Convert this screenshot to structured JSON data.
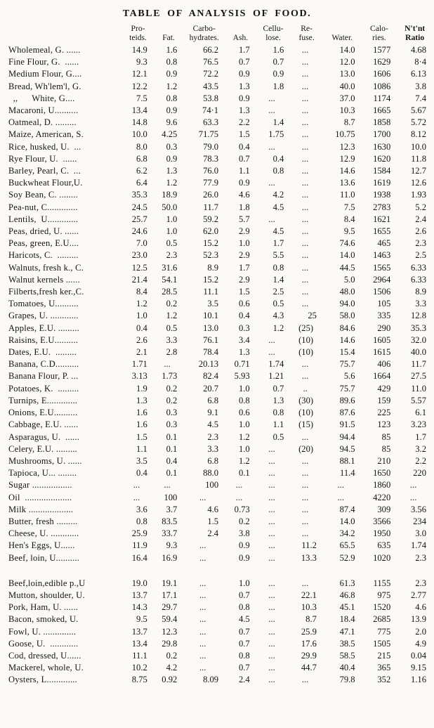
{
  "page": {
    "title": "TABLE OF ANALYSIS OF FOOD."
  },
  "table": {
    "headers": [
      {
        "l1": "Pro-",
        "l2": "teids."
      },
      {
        "l1": "",
        "l2": "Fat."
      },
      {
        "l1": "Carbo-",
        "l2": "hydrates."
      },
      {
        "l1": "",
        "l2": "Ash."
      },
      {
        "l1": "Cellu-",
        "l2": "lose."
      },
      {
        "l1": "Re-",
        "l2": "fuse."
      },
      {
        "l1": "",
        "l2": "Water."
      },
      {
        "l1": "Calo-",
        "l2": "ries."
      },
      {
        "l1": "N't'nt",
        "l2": "Ratio"
      }
    ],
    "rows_main": [
      {
        "name": "Wholemeal, G. ......",
        "v": [
          "14.9",
          "1.6",
          "66.2",
          "1.7",
          "1.6",
          "...",
          "14.0",
          "1577",
          "4.68"
        ]
      },
      {
        "name": "Fine Flour, G.  ......",
        "v": [
          "9.3",
          "0.8",
          "76.5",
          "0.7",
          "0.7",
          "...",
          "12.0",
          "1629",
          "8·4"
        ]
      },
      {
        "name": "Medium Flour, G....",
        "v": [
          "12.1",
          "0.9",
          "72.2",
          "0.9",
          "0.9",
          "...",
          "13.0",
          "1606",
          "6.13"
        ]
      },
      {
        "name": "Bread, Wh'lem'l, G.",
        "v": [
          "12.2",
          "1.2",
          "43.5",
          "1.3",
          "1.8",
          "...",
          "40.0",
          "1086",
          "3.8"
        ]
      },
      {
        "name": "  ,,      White, G....",
        "v": [
          "7.5",
          "0.8",
          "53.8",
          "0.9",
          "...",
          "...",
          "37.0",
          "1174",
          "7.4"
        ]
      },
      {
        "name": "Macaroni, U..........",
        "v": [
          "13.4",
          "0.9",
          "74·1",
          "1.3",
          "...",
          "...",
          "10.3",
          "1665",
          "5.67"
        ]
      },
      {
        "name": "Oatmeal, D. .........",
        "v": [
          "14.8",
          "9.6",
          "63.3",
          "2.2",
          "1.4",
          "...",
          "8.7",
          "1858",
          "5.72"
        ]
      },
      {
        "name": "Maize, American, S.",
        "v": [
          "10.0",
          "4.25",
          "71.75",
          "1.5",
          "1.75",
          "...",
          "10.75",
          "1700",
          "8.12"
        ]
      },
      {
        "name": "Rice, husked, U.  ...",
        "v": [
          "8.0",
          "0.3",
          "79.0",
          "0.4",
          "...",
          "...",
          "12.3",
          "1630",
          "10.0"
        ]
      },
      {
        "name": "Rye Flour, U.  ......",
        "v": [
          "6.8",
          "0.9",
          "78.3",
          "0.7",
          "0.4",
          "...",
          "12.9",
          "1620",
          "11.8"
        ]
      },
      {
        "name": "Barley, Pearl, C.  ...",
        "v": [
          "6.2",
          "1.3",
          "76.0",
          "1.1",
          "0.8",
          "...",
          "14.6",
          "1584",
          "12.7"
        ]
      },
      {
        "name": "Buckwheat Flour,U.",
        "v": [
          "6.4",
          "1.2",
          "77.9",
          "0.9",
          "...",
          "...",
          "13.6",
          "1619",
          "12.6"
        ]
      },
      {
        "name": "Soy Bean, C. ........",
        "v": [
          "35.3",
          "18.9",
          "26.0",
          "4.6",
          "4.2",
          "...",
          "11.0",
          "1938",
          "1.93"
        ]
      },
      {
        "name": "Pea-nut, C.............",
        "v": [
          "24.5",
          "50.0",
          "11.7",
          "1.8",
          "4.5",
          "...",
          "7.5",
          "2783",
          "5.2"
        ]
      },
      {
        "name": "Lentils,  U.............",
        "v": [
          "25.7",
          "1.0",
          "59.2",
          "5.7",
          "...",
          "...",
          "8.4",
          "1621",
          "2.4"
        ]
      },
      {
        "name": "Peas, dried, U. ......",
        "v": [
          "24.6",
          "1.0",
          "62.0",
          "2.9",
          "4.5",
          "...",
          "9.5",
          "1655",
          "2.6"
        ]
      },
      {
        "name": "Peas, green, E.U....",
        "v": [
          "7.0",
          "0.5",
          "15.2",
          "1.0",
          "1.7",
          "...",
          "74.6",
          "465",
          "2.3"
        ]
      },
      {
        "name": "Haricots, C.  .........",
        "v": [
          "23.0",
          "2.3",
          "52.3",
          "2.9",
          "5.5",
          "...",
          "14.0",
          "1463",
          "2.5"
        ]
      },
      {
        "name": "Walnuts, fresh k., C.",
        "v": [
          "12.5",
          "31.6",
          "8.9",
          "1.7",
          "0.8",
          "...",
          "44.5",
          "1565",
          "6.33"
        ]
      },
      {
        "name": "Walnut kernels ......",
        "v": [
          "21.4",
          "54.1",
          "15.2",
          "2.9",
          "1.4",
          "...",
          "5.0",
          "2964",
          "6.33"
        ]
      },
      {
        "name": "Filberts,fresh ker.,C.",
        "v": [
          "8.4",
          "28.5",
          "11.1",
          "1.5",
          "2.5",
          "...",
          "48.0",
          "1506",
          "8.9"
        ]
      },
      {
        "name": "Tomatoes, U..........",
        "v": [
          "1.2",
          "0.2",
          "3.5",
          "0.6",
          "0.5",
          "...",
          "94.0",
          "105",
          "3.3"
        ]
      },
      {
        "name": "Grapes, U. ............",
        "v": [
          "1.0",
          "1.2",
          "10.1",
          "0.4",
          "4.3",
          "25",
          "58.0",
          "335",
          "12.8"
        ]
      },
      {
        "name": "Apples, E.U. .........",
        "v": [
          "0.4",
          "0.5",
          "13.0",
          "0.3",
          "1.2",
          "(25)",
          "84.6",
          "290",
          "35.3"
        ]
      },
      {
        "name": "Raisins, E.U..........",
        "v": [
          "2.6",
          "3.3",
          "76.1",
          "3.4",
          "...",
          "(10)",
          "14.6",
          "1605",
          "32.0"
        ]
      },
      {
        "name": "Dates, E.U.  .........",
        "v": [
          "2.1",
          "2.8",
          "78.4",
          "1.3",
          "...",
          "(10)",
          "15.4",
          "1615",
          "40.0"
        ]
      },
      {
        "name": "Banana, C.D..........",
        "v": [
          "1.71",
          "...",
          "20.13",
          "0.71",
          "1.74",
          "...",
          "75.7",
          "406",
          "11.7"
        ]
      },
      {
        "name": "Banana Flour, P. ...",
        "v": [
          "3.13",
          "1.73",
          "82.4",
          "5.93",
          "1.21",
          "...",
          "5.6",
          "1664",
          "27.5"
        ]
      },
      {
        "name": "Potatoes, K.  .........",
        "v": [
          "1.9",
          "0.2",
          "20.7",
          "1.0",
          "0.7",
          "..",
          "75.7",
          "429",
          "11.0"
        ]
      },
      {
        "name": "Turnips, E.............",
        "v": [
          "1.3",
          "0.2",
          "6.8",
          "0.8",
          "1.3",
          "(30)",
          "89.6",
          "159",
          "5.57"
        ]
      },
      {
        "name": "Onions, E.U..........",
        "v": [
          "1.6",
          "0.3",
          "9.1",
          "0.6",
          "0.8",
          "(10)",
          "87.6",
          "225",
          "6.1"
        ]
      },
      {
        "name": "Cabbage, E.U. ......",
        "v": [
          "1.6",
          "0.3",
          "4.5",
          "1.0",
          "1.1",
          "(15)",
          "91.5",
          "123",
          "3.23"
        ]
      },
      {
        "name": "Asparagus, U.  ......",
        "v": [
          "1.5",
          "0.1",
          "2.3",
          "1.2",
          "0.5",
          "...",
          "94.4",
          "85",
          "1.7"
        ]
      },
      {
        "name": "Celery, E.U. .........",
        "v": [
          "1.1",
          "0.1",
          "3.3",
          "1.0",
          "...",
          "(20)",
          "94.5",
          "85",
          "3.2"
        ]
      },
      {
        "name": "Mushrooms, U. ......",
        "v": [
          "3.5",
          "0.4",
          "6.8",
          "1.2",
          "...",
          "...",
          "88.1",
          "210",
          "2.2"
        ]
      },
      {
        "name": "Tapioca, U... ........",
        "v": [
          "0.4",
          "0.1",
          "88.0",
          "0.1",
          "...",
          "...",
          "11.4",
          "1650",
          "220"
        ]
      },
      {
        "name": "Sugar .................",
        "v": [
          "...",
          "...",
          "100",
          "...",
          "...",
          "...",
          "...",
          "1860",
          "..."
        ]
      },
      {
        "name": "Oil  ....................",
        "v": [
          "...",
          "100",
          "...",
          "...",
          "...",
          "...",
          "...",
          "4220",
          "..."
        ]
      },
      {
        "name": "Milk ...................",
        "v": [
          "3.6",
          "3.7",
          "4.6",
          "0.73",
          "...",
          "...",
          "87.4",
          "309",
          "3.56"
        ]
      },
      {
        "name": "Butter, fresh .........",
        "v": [
          "0.8",
          "83.5",
          "1.5",
          "0.2",
          "...",
          "...",
          "14.0",
          "3566",
          "234"
        ]
      },
      {
        "name": "Cheese, U. ............",
        "v": [
          "25.9",
          "33.7",
          "2.4",
          "3.8",
          "...",
          "...",
          "34.2",
          "1950",
          "3.0"
        ]
      },
      {
        "name": "Hen's Eggs, U......",
        "v": [
          "11.9",
          "9.3",
          "...",
          "0.9",
          "...",
          "11.2",
          "65.5",
          "635",
          "1.74"
        ]
      },
      {
        "name": "Beef, loin, U..........",
        "v": [
          "16.4",
          "16.9",
          "...",
          "0.9",
          "...",
          "13.3",
          "52.9",
          "1020",
          "2.3"
        ]
      }
    ],
    "rows_lower": [
      {
        "name": "Beef,loin,edible p.,U",
        "v": [
          "19.0",
          "19.1",
          "...",
          "1.0",
          "...",
          "...",
          "61.3",
          "1155",
          "2.3"
        ]
      },
      {
        "name": "Mutton, shoulder, U.",
        "v": [
          "13.7",
          "17.1",
          "...",
          "0.7",
          "...",
          "22.1",
          "46.8",
          "975",
          "2.77"
        ]
      },
      {
        "name": "Pork, Ham, U. ......",
        "v": [
          "14.3",
          "29.7",
          "...",
          "0.8",
          "...",
          "10.3",
          "45.1",
          "1520",
          "4.6"
        ]
      },
      {
        "name": "Bacon, smoked, U.",
        "v": [
          "9.5",
          "59.4",
          "...",
          "4.5",
          "...",
          "8.7",
          "18.4",
          "2685",
          "13.9"
        ]
      },
      {
        "name": "Fowl, U. ..............",
        "v": [
          "13.7",
          "12.3",
          "...",
          "0.7",
          "...",
          "25.9",
          "47.1",
          "775",
          "2.0"
        ]
      },
      {
        "name": "Goose, U.  ............",
        "v": [
          "13.4",
          "29.8",
          "...",
          "0.7",
          "...",
          "17.6",
          "38.5",
          "1505",
          "4.9"
        ]
      },
      {
        "name": "Cod, dressed, U......",
        "v": [
          "11.1",
          "0.2",
          "...",
          "0.8",
          "...",
          "29.9",
          "58.5",
          "215",
          "0.04"
        ]
      },
      {
        "name": "Mackerel, whole, U.",
        "v": [
          "10.2",
          "4.2",
          "...",
          "0.7",
          "...",
          "44.7",
          "40.4",
          "365",
          "9.15"
        ]
      },
      {
        "name": "Oysters, L.............",
        "v": [
          "8.75",
          "0.92",
          "8.09",
          "2.4",
          "...",
          "...",
          "79.8",
          "352",
          "1.16"
        ]
      }
    ]
  }
}
